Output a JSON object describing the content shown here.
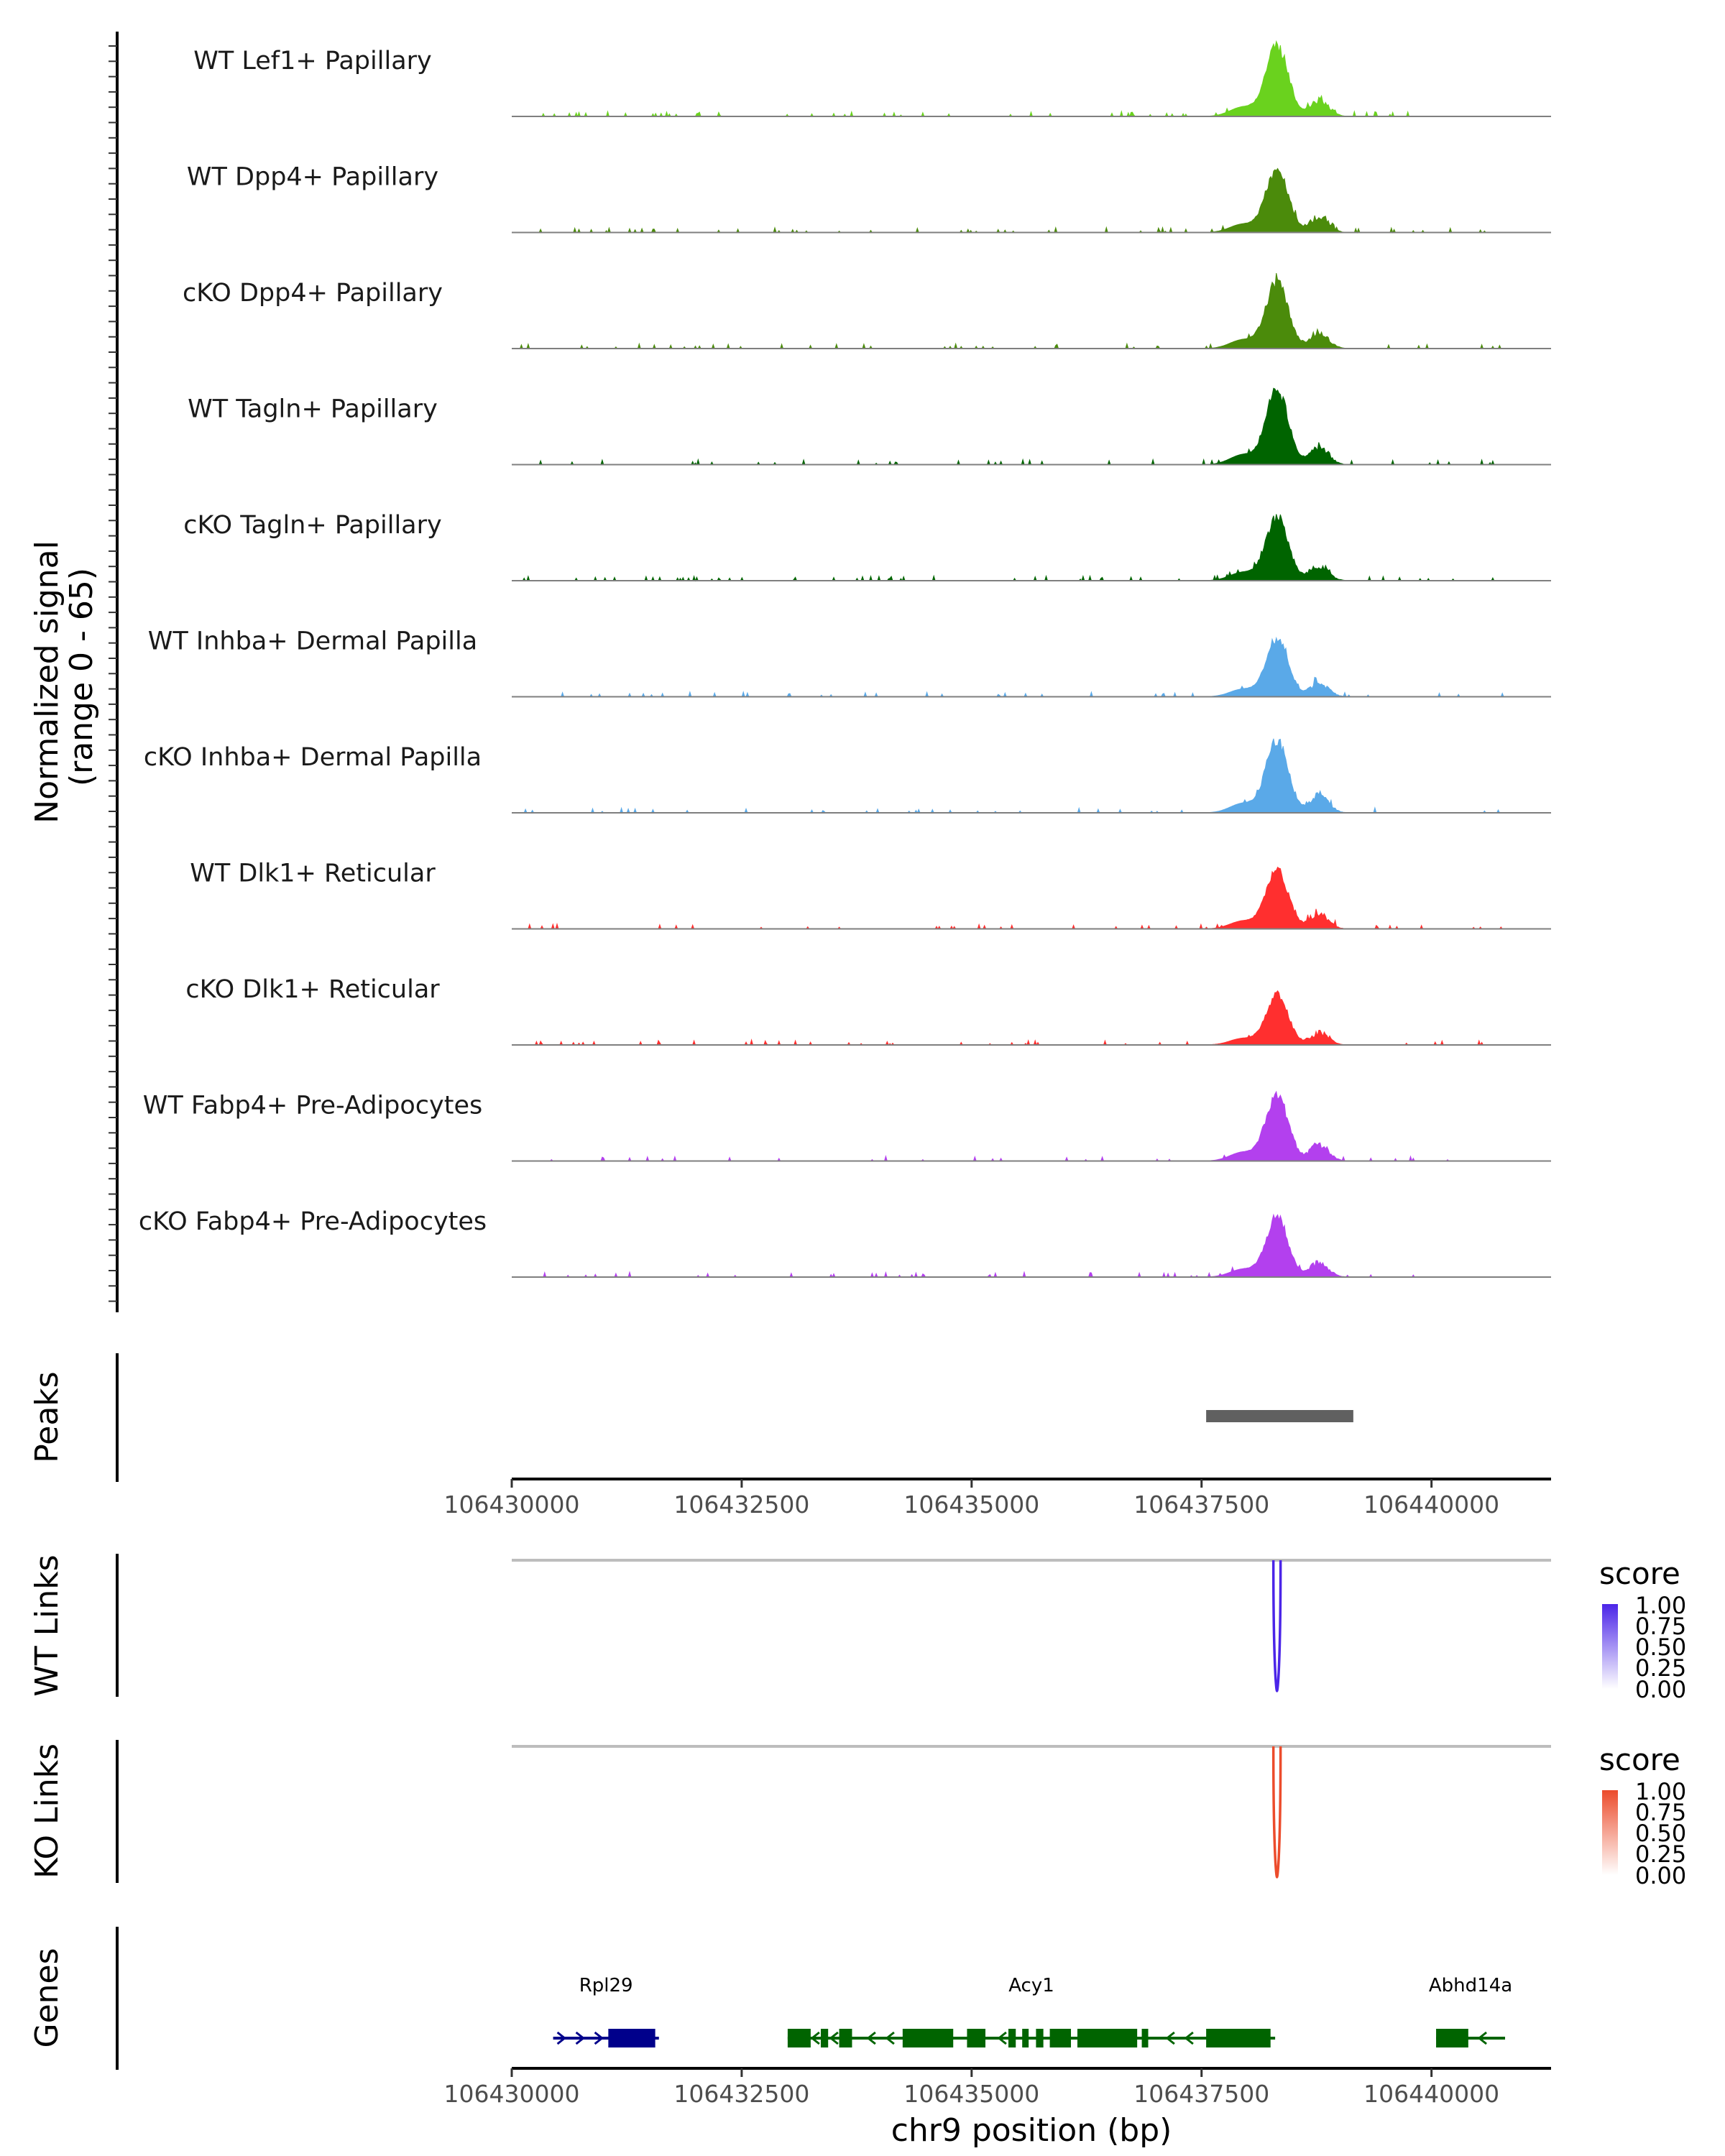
{
  "chart_data": {
    "type": "genome-browser",
    "coverage": {
      "ylabel_line1": "Normalized signal",
      "ylabel_line2": "(range 0 - 65)",
      "ylim": [
        0,
        65
      ],
      "tracks": [
        {
          "name": "WT Lef1+ Papillary",
          "color": "#6ad21e",
          "peak_height": 62
        },
        {
          "name": "WT Dpp4+ Papillary",
          "color": "#4b8b0b",
          "peak_height": 55
        },
        {
          "name": "cKO Dpp4+ Papillary",
          "color": "#4b8b0b",
          "peak_height": 58
        },
        {
          "name": "WT Tagln+ Papillary",
          "color": "#006400",
          "peak_height": 65
        },
        {
          "name": "cKO Tagln+ Papillary",
          "color": "#006400",
          "peak_height": 55
        },
        {
          "name": "WT Inhba+ Dermal Papilla",
          "color": "#5aa9e8",
          "peak_height": 50
        },
        {
          "name": "cKO Inhba+ Dermal Papilla",
          "color": "#5aa9e8",
          "peak_height": 62
        },
        {
          "name": "WT Dlk1+ Reticular",
          "color": "#ff2f2f",
          "peak_height": 52
        },
        {
          "name": "cKO Dlk1+ Reticular",
          "color": "#ff2f2f",
          "peak_height": 43
        },
        {
          "name": "WT Fabp4+ Pre-Adipocytes",
          "color": "#b340ee",
          "peak_height": 58
        },
        {
          "name": "cKO Fabp4+ Pre-Adipocytes",
          "color": "#b340ee",
          "peak_height": 52
        }
      ]
    },
    "peaks": {
      "label": "Peaks",
      "regions": [
        {
          "start": 106437550,
          "end": 106439150
        }
      ],
      "color": "#606060"
    },
    "x_axis": {
      "range": [
        106430000,
        106441300
      ],
      "ticks": [
        106430000,
        106432500,
        106435000,
        106437500,
        106440000
      ],
      "tick_labels": [
        "106430000",
        "106432500",
        "106435000",
        "106437500",
        "106440000"
      ],
      "title": "chr9 position (bp)"
    },
    "links": [
      {
        "label": "WT Links",
        "peak_pos": 106438320,
        "color": "#4b25e8",
        "legend_title": "score",
        "legend_ticks": [
          "1.00",
          "0.75",
          "0.50",
          "0.25",
          "0.00"
        ]
      },
      {
        "label": "KO Links",
        "peak_pos": 106438320,
        "color": "#ec4c2c",
        "legend_title": "score",
        "legend_ticks": [
          "1.00",
          "0.75",
          "0.50",
          "0.25",
          "0.00"
        ]
      }
    ],
    "genes": {
      "label": "Genes",
      "items": [
        {
          "name": "Rpl29",
          "start": 106430450,
          "end": 106431600,
          "strand": "+",
          "color": "#00008b",
          "exons": [
            [
              106431050,
              106431560
            ]
          ]
        },
        {
          "name": "Acy1",
          "start": 106433000,
          "end": 106438300,
          "strand": "-",
          "color": "#006400",
          "exons": [
            [
              106433000,
              106433250
            ],
            [
              106433360,
              106433440
            ],
            [
              106433560,
              106433700
            ],
            [
              106434250,
              106434800
            ],
            [
              106434950,
              106435150
            ],
            [
              106435400,
              106435480
            ],
            [
              106435550,
              106435620
            ],
            [
              106435700,
              106435780
            ],
            [
              106435850,
              106436080
            ],
            [
              106436150,
              106436800
            ],
            [
              106436850,
              106436920
            ],
            [
              106437550,
              106438250
            ]
          ]
        },
        {
          "name": "Abhd14a",
          "start": 106440050,
          "end": 106440800,
          "strand": "-",
          "color": "#006400",
          "exons": [
            [
              106440050,
              106440400
            ]
          ]
        }
      ]
    }
  }
}
